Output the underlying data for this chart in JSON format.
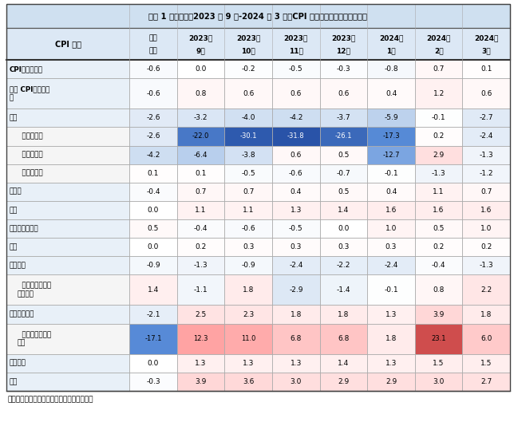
{
  "title": "表格 1 过去半年（2023 年 9 月-2024 年 3 月）CPI 及其主要分项指标运行状况",
  "footer": "数据来源：国家统计局，广开首席产业研究院",
  "col_header_line1": [
    "CPI 指标",
    "边际",
    "2023年",
    "2023年",
    "2023年",
    "2023年",
    "2024年",
    "2024年",
    "2024年"
  ],
  "col_header_line2": [
    "",
    "变化",
    "9月",
    "10月",
    "11月",
    "12月",
    "1月",
    "2月",
    "3月"
  ],
  "rows": [
    {
      "label": "CPI：当月同比",
      "indent": 0,
      "bold": true,
      "values": [
        -0.6,
        0.0,
        -0.2,
        -0.5,
        -0.3,
        -0.8,
        0.7,
        0.1
      ]
    },
    {
      "label": "核心 CPI：当月同\n比",
      "indent": 0,
      "bold": true,
      "tall": true,
      "values": [
        -0.6,
        0.8,
        0.6,
        0.6,
        0.6,
        0.4,
        1.2,
        0.6
      ]
    },
    {
      "label": "食品",
      "indent": 0,
      "bold": true,
      "values": [
        -2.6,
        -3.2,
        -4.0,
        -4.2,
        -3.7,
        -5.9,
        -0.1,
        -2.7
      ]
    },
    {
      "label": "  食品：猪肉",
      "indent": 1,
      "bold": false,
      "values": [
        -2.6,
        -22.0,
        -30.1,
        -31.8,
        -26.1,
        -17.3,
        0.2,
        -2.4
      ]
    },
    {
      "label": "  食品：鲜菜",
      "indent": 1,
      "bold": false,
      "values": [
        -4.2,
        -6.4,
        -3.8,
        0.6,
        0.5,
        -12.7,
        2.9,
        -1.3
      ]
    },
    {
      "label": "  食品：酒类",
      "indent": 1,
      "bold": false,
      "values": [
        0.1,
        0.1,
        -0.5,
        -0.6,
        -0.7,
        -0.1,
        -1.3,
        -1.2
      ]
    },
    {
      "label": "非食品",
      "indent": 0,
      "bold": true,
      "values": [
        -0.4,
        0.7,
        0.7,
        0.4,
        0.5,
        0.4,
        1.1,
        0.7
      ]
    },
    {
      "label": "衣着",
      "indent": 0,
      "bold": false,
      "values": [
        0.0,
        1.1,
        1.1,
        1.3,
        1.4,
        1.6,
        1.6,
        1.6
      ]
    },
    {
      "label": "生活用品及服务",
      "indent": 0,
      "bold": false,
      "values": [
        0.5,
        -0.4,
        -0.6,
        -0.5,
        0.0,
        1.0,
        0.5,
        1.0
      ]
    },
    {
      "label": "居住",
      "indent": 0,
      "bold": false,
      "values": [
        0.0,
        0.2,
        0.3,
        0.3,
        0.3,
        0.3,
        0.2,
        0.2
      ]
    },
    {
      "label": "交通通信",
      "indent": 0,
      "bold": false,
      "values": [
        -0.9,
        -1.3,
        -0.9,
        -2.4,
        -2.2,
        -2.4,
        -0.4,
        -1.3
      ]
    },
    {
      "label": "  交通通信：交通\n工具燃料",
      "indent": 1,
      "bold": false,
      "tall": true,
      "values": [
        1.4,
        -1.1,
        1.8,
        -2.9,
        -1.4,
        -0.1,
        0.8,
        2.2
      ]
    },
    {
      "label": "教育文化娱乐",
      "indent": 0,
      "bold": false,
      "values": [
        -2.1,
        2.5,
        2.3,
        1.8,
        1.8,
        1.3,
        3.9,
        1.8
      ]
    },
    {
      "label": "  教育文化娱乐：\n旅游",
      "indent": 1,
      "bold": false,
      "tall": true,
      "values": [
        -17.1,
        12.3,
        11.0,
        6.8,
        6.8,
        1.8,
        23.1,
        6.0
      ]
    },
    {
      "label": "医疗保健",
      "indent": 0,
      "bold": false,
      "values": [
        0.0,
        1.3,
        1.3,
        1.3,
        1.4,
        1.3,
        1.5,
        1.5
      ]
    },
    {
      "label": "其他",
      "indent": 0,
      "bold": false,
      "values": [
        -0.3,
        3.9,
        3.6,
        3.0,
        2.9,
        2.9,
        3.0,
        2.7
      ]
    }
  ],
  "title_bg": "#cfe0f0",
  "header_bg": "#dce8f5",
  "label_bg_main": "#e8f0f8",
  "label_bg_indent": "#f5f5f5",
  "border_dark": "#555555",
  "border_light": "#aaaaaa"
}
